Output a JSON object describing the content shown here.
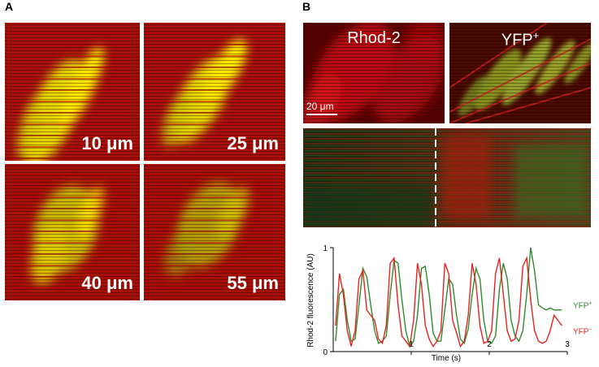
{
  "panel_a": {
    "letter": "A",
    "tiles": [
      {
        "label": "10 μm"
      },
      {
        "label": "25 μm"
      },
      {
        "label": "40 μm"
      },
      {
        "label": "55 μm"
      }
    ]
  },
  "panel_b": {
    "letter": "B",
    "rhod_title": "Rhod-2",
    "yfp_title": "YFP",
    "yfp_sup": "+",
    "scalebar_label": "20 μm",
    "colors": {
      "green_trace": "#2e8b2e",
      "red_trace": "#e8231e"
    }
  },
  "chart_data": {
    "type": "line",
    "ylabel": "Rhod-2 fluorescence (AU)",
    "xlabel": "Time (s)",
    "xlim": [
      0,
      3
    ],
    "ylim": [
      0,
      1
    ],
    "xticks": [
      "1",
      "2",
      "3"
    ],
    "yticks": [
      "0",
      "1"
    ],
    "series": [
      {
        "name": "YFP",
        "name_sup": "+",
        "color": "#2e8b2e",
        "x": [
          0.03,
          0.08,
          0.13,
          0.18,
          0.23,
          0.28,
          0.33,
          0.38,
          0.43,
          0.48,
          0.53,
          0.58,
          0.63,
          0.68,
          0.73,
          0.78,
          0.83,
          0.88,
          0.93,
          0.98,
          1.03,
          1.08,
          1.13,
          1.18,
          1.23,
          1.28,
          1.33,
          1.38,
          1.43,
          1.48,
          1.53,
          1.58,
          1.63,
          1.68,
          1.73,
          1.78,
          1.83,
          1.88,
          1.93,
          1.98,
          2.03,
          2.08,
          2.13,
          2.18,
          2.23,
          2.28,
          2.33,
          2.38,
          2.43,
          2.48,
          2.53,
          2.58,
          2.63,
          2.68,
          2.73,
          2.78,
          2.83,
          2.88,
          2.93
        ],
        "y": [
          0.1,
          0.55,
          0.6,
          0.3,
          0.1,
          0.12,
          0.45,
          0.8,
          0.72,
          0.45,
          0.2,
          0.08,
          0.1,
          0.15,
          0.55,
          0.88,
          0.85,
          0.5,
          0.2,
          0.05,
          0.1,
          0.35,
          0.8,
          0.82,
          0.55,
          0.18,
          0.1,
          0.1,
          0.4,
          0.7,
          0.65,
          0.35,
          0.12,
          0.08,
          0.22,
          0.55,
          0.8,
          0.7,
          0.3,
          0.1,
          0.08,
          0.15,
          0.6,
          0.85,
          0.7,
          0.3,
          0.15,
          0.1,
          0.2,
          0.55,
          1.0,
          0.78,
          0.45,
          0.42,
          0.4,
          0.42,
          0.4,
          0.4,
          0.4
        ]
      },
      {
        "name": "YFP",
        "name_sup": "−",
        "color": "#e8231e",
        "x": [
          0.03,
          0.08,
          0.13,
          0.18,
          0.23,
          0.28,
          0.33,
          0.38,
          0.43,
          0.48,
          0.53,
          0.58,
          0.63,
          0.68,
          0.73,
          0.78,
          0.83,
          0.88,
          0.93,
          0.98,
          1.03,
          1.08,
          1.13,
          1.18,
          1.23,
          1.28,
          1.33,
          1.38,
          1.43,
          1.48,
          1.53,
          1.58,
          1.63,
          1.68,
          1.73,
          1.78,
          1.83,
          1.88,
          1.93,
          1.98,
          2.03,
          2.08,
          2.13,
          2.18,
          2.23,
          2.28,
          2.33,
          2.38,
          2.43,
          2.48,
          2.53,
          2.58,
          2.63,
          2.68,
          2.73,
          2.78,
          2.83,
          2.88,
          2.93
        ],
        "y": [
          0.25,
          0.75,
          0.55,
          0.2,
          0.05,
          0.2,
          0.7,
          0.78,
          0.4,
          0.35,
          0.3,
          0.12,
          0.08,
          0.25,
          0.85,
          0.9,
          0.45,
          0.15,
          0.1,
          0.05,
          0.3,
          0.85,
          0.65,
          0.25,
          0.12,
          0.05,
          0.1,
          0.2,
          0.85,
          0.75,
          0.3,
          0.18,
          0.05,
          0.1,
          0.35,
          0.85,
          0.65,
          0.25,
          0.08,
          0.1,
          0.2,
          0.75,
          0.9,
          0.55,
          0.2,
          0.1,
          0.12,
          0.3,
          0.82,
          0.9,
          0.5,
          0.2,
          0.1,
          0.08,
          0.1,
          0.2,
          0.35,
          0.3,
          0.25
        ]
      }
    ]
  }
}
